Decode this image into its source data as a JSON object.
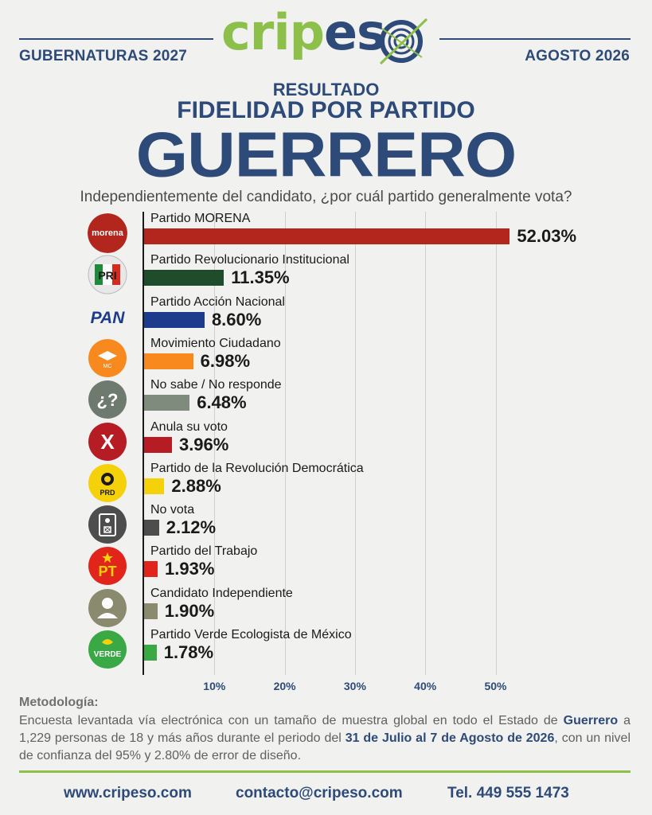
{
  "header": {
    "left": "GUBERNATURAS 2027",
    "right": "AGOSTO 2026",
    "logo": "cripeso"
  },
  "titles": {
    "sub1": "RESULTADO",
    "sub2": "FIDELIDAD POR PARTIDO",
    "state": "GUERRERO",
    "question": "Independientemente del candidato, ¿por cuál partido generalmente vota?"
  },
  "chart_data": {
    "type": "bar",
    "orientation": "horizontal",
    "categories": [
      "Partido MORENA",
      "Partido Revolucionario Institucional",
      "Partido Acción Nacional",
      "Movimiento Ciudadano",
      "No sabe / No responde",
      "Anula su voto",
      "Partido de la Revolución Democrática",
      "No vota",
      "Partido del Trabajo",
      "Candidato Independiente",
      "Partido Verde Ecologista de México"
    ],
    "values": [
      52.03,
      11.35,
      8.6,
      6.98,
      6.48,
      3.96,
      2.88,
      2.12,
      1.93,
      1.9,
      1.78
    ],
    "value_labels": [
      "52.03%",
      "11.35%",
      "8.60%",
      "6.98%",
      "6.48%",
      "3.96%",
      "2.88%",
      "2.12%",
      "1.93%",
      "1.90%",
      "1.78%"
    ],
    "colors": [
      "#b3261e",
      "#1f4d2b",
      "#1d3b8c",
      "#f7891f",
      "#7f8c7d",
      "#b51c24",
      "#f5d10a",
      "#4d4d4d",
      "#e1251b",
      "#8a8a6e",
      "#3aa845"
    ],
    "icons": [
      "morena-logo-icon",
      "pri-logo-icon",
      "pan-logo-icon",
      "movimiento-ciudadano-logo-icon",
      "question-mark-icon",
      "x-mark-icon",
      "prd-logo-icon",
      "ballot-box-icon",
      "pt-logo-icon",
      "person-icon",
      "verde-logo-icon"
    ],
    "icon_texts": [
      "morena",
      "PRI",
      "PAN",
      "MC",
      "¿?",
      "X",
      "PRD",
      "",
      "PT",
      "",
      "VERDE"
    ],
    "xticks": [
      "10%",
      "20%",
      "30%",
      "40%",
      "50%"
    ],
    "xlim": [
      0,
      55
    ],
    "grid": true
  },
  "methodology": {
    "title": "Metodología:",
    "t1": "Encuesta levantada vía electrónica con un tamaño de muestra global en todo el Estado de ",
    "b1": "Guerrero",
    "t2": " a 1,229 personas de 18 y más años durante el periodo del ",
    "b2": "31 de Julio al 7 de Agosto de 2026",
    "t3": ", con un nivel de confianza del 95% y 2.80% de error de diseño."
  },
  "footer": {
    "web": "www.cripeso.com",
    "email": "contacto@cripeso.com",
    "phone": "Tel. 449 555 1473"
  }
}
